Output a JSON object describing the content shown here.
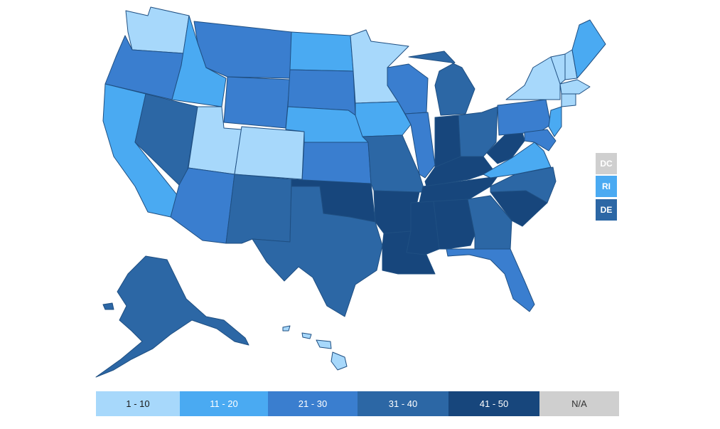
{
  "colors": {
    "range_1_10": "#a7d8fb",
    "range_11_20": "#4aaaf2",
    "range_21_30": "#3a7ecf",
    "range_31_40": "#2c67a5",
    "range_41_50": "#17467c",
    "na": "#cfcfcf",
    "stroke": "#1f4f82"
  },
  "small_states": [
    {
      "label": "DC",
      "range": "na"
    },
    {
      "label": "RI",
      "range": "range_11_20"
    },
    {
      "label": "DE",
      "range": "range_31_40"
    }
  ],
  "legend": [
    {
      "label": "1 - 10",
      "range": "range_1_10",
      "text_color": "#1a1a1a"
    },
    {
      "label": "11 - 20",
      "range": "range_11_20",
      "text_color": "#ffffff"
    },
    {
      "label": "21 - 30",
      "range": "range_21_30",
      "text_color": "#ffffff"
    },
    {
      "label": "31 - 40",
      "range": "range_31_40",
      "text_color": "#ffffff"
    },
    {
      "label": "41 - 50",
      "range": "range_41_50",
      "text_color": "#ffffff"
    },
    {
      "label": "N/A",
      "range": "na",
      "text_color": "#333333"
    }
  ],
  "states": {
    "WA": "range_1_10",
    "OR": "range_21_30",
    "CA": "range_11_20",
    "ID": "range_11_20",
    "NV": "range_31_40",
    "UT": "range_1_10",
    "AZ": "range_21_30",
    "MT": "range_21_30",
    "WY": "range_21_30",
    "CO": "range_1_10",
    "NM": "range_31_40",
    "ND": "range_11_20",
    "SD": "range_21_30",
    "NE": "range_11_20",
    "KS": "range_21_30",
    "OK": "range_41_50",
    "TX": "range_31_40",
    "MN": "range_1_10",
    "IA": "range_11_20",
    "MO": "range_31_40",
    "AR": "range_41_50",
    "LA": "range_41_50",
    "WI": "range_21_30",
    "IL": "range_21_30",
    "MI": "range_31_40",
    "IN": "range_41_50",
    "OH": "range_31_40",
    "KY": "range_41_50",
    "TN": "range_41_50",
    "MS": "range_41_50",
    "AL": "range_41_50",
    "GA": "range_31_40",
    "FL": "range_21_30",
    "SC": "range_41_50",
    "NC": "range_31_40",
    "VA": "range_11_20",
    "WV": "range_41_50",
    "PA": "range_21_30",
    "NY": "range_1_10",
    "VT": "range_1_10",
    "NH": "range_1_10",
    "ME": "range_11_20",
    "MA": "range_1_10",
    "CT": "range_1_10",
    "NJ": "range_11_20",
    "MD": "range_21_30",
    "AK": "range_31_40",
    "HI": "range_1_10"
  }
}
